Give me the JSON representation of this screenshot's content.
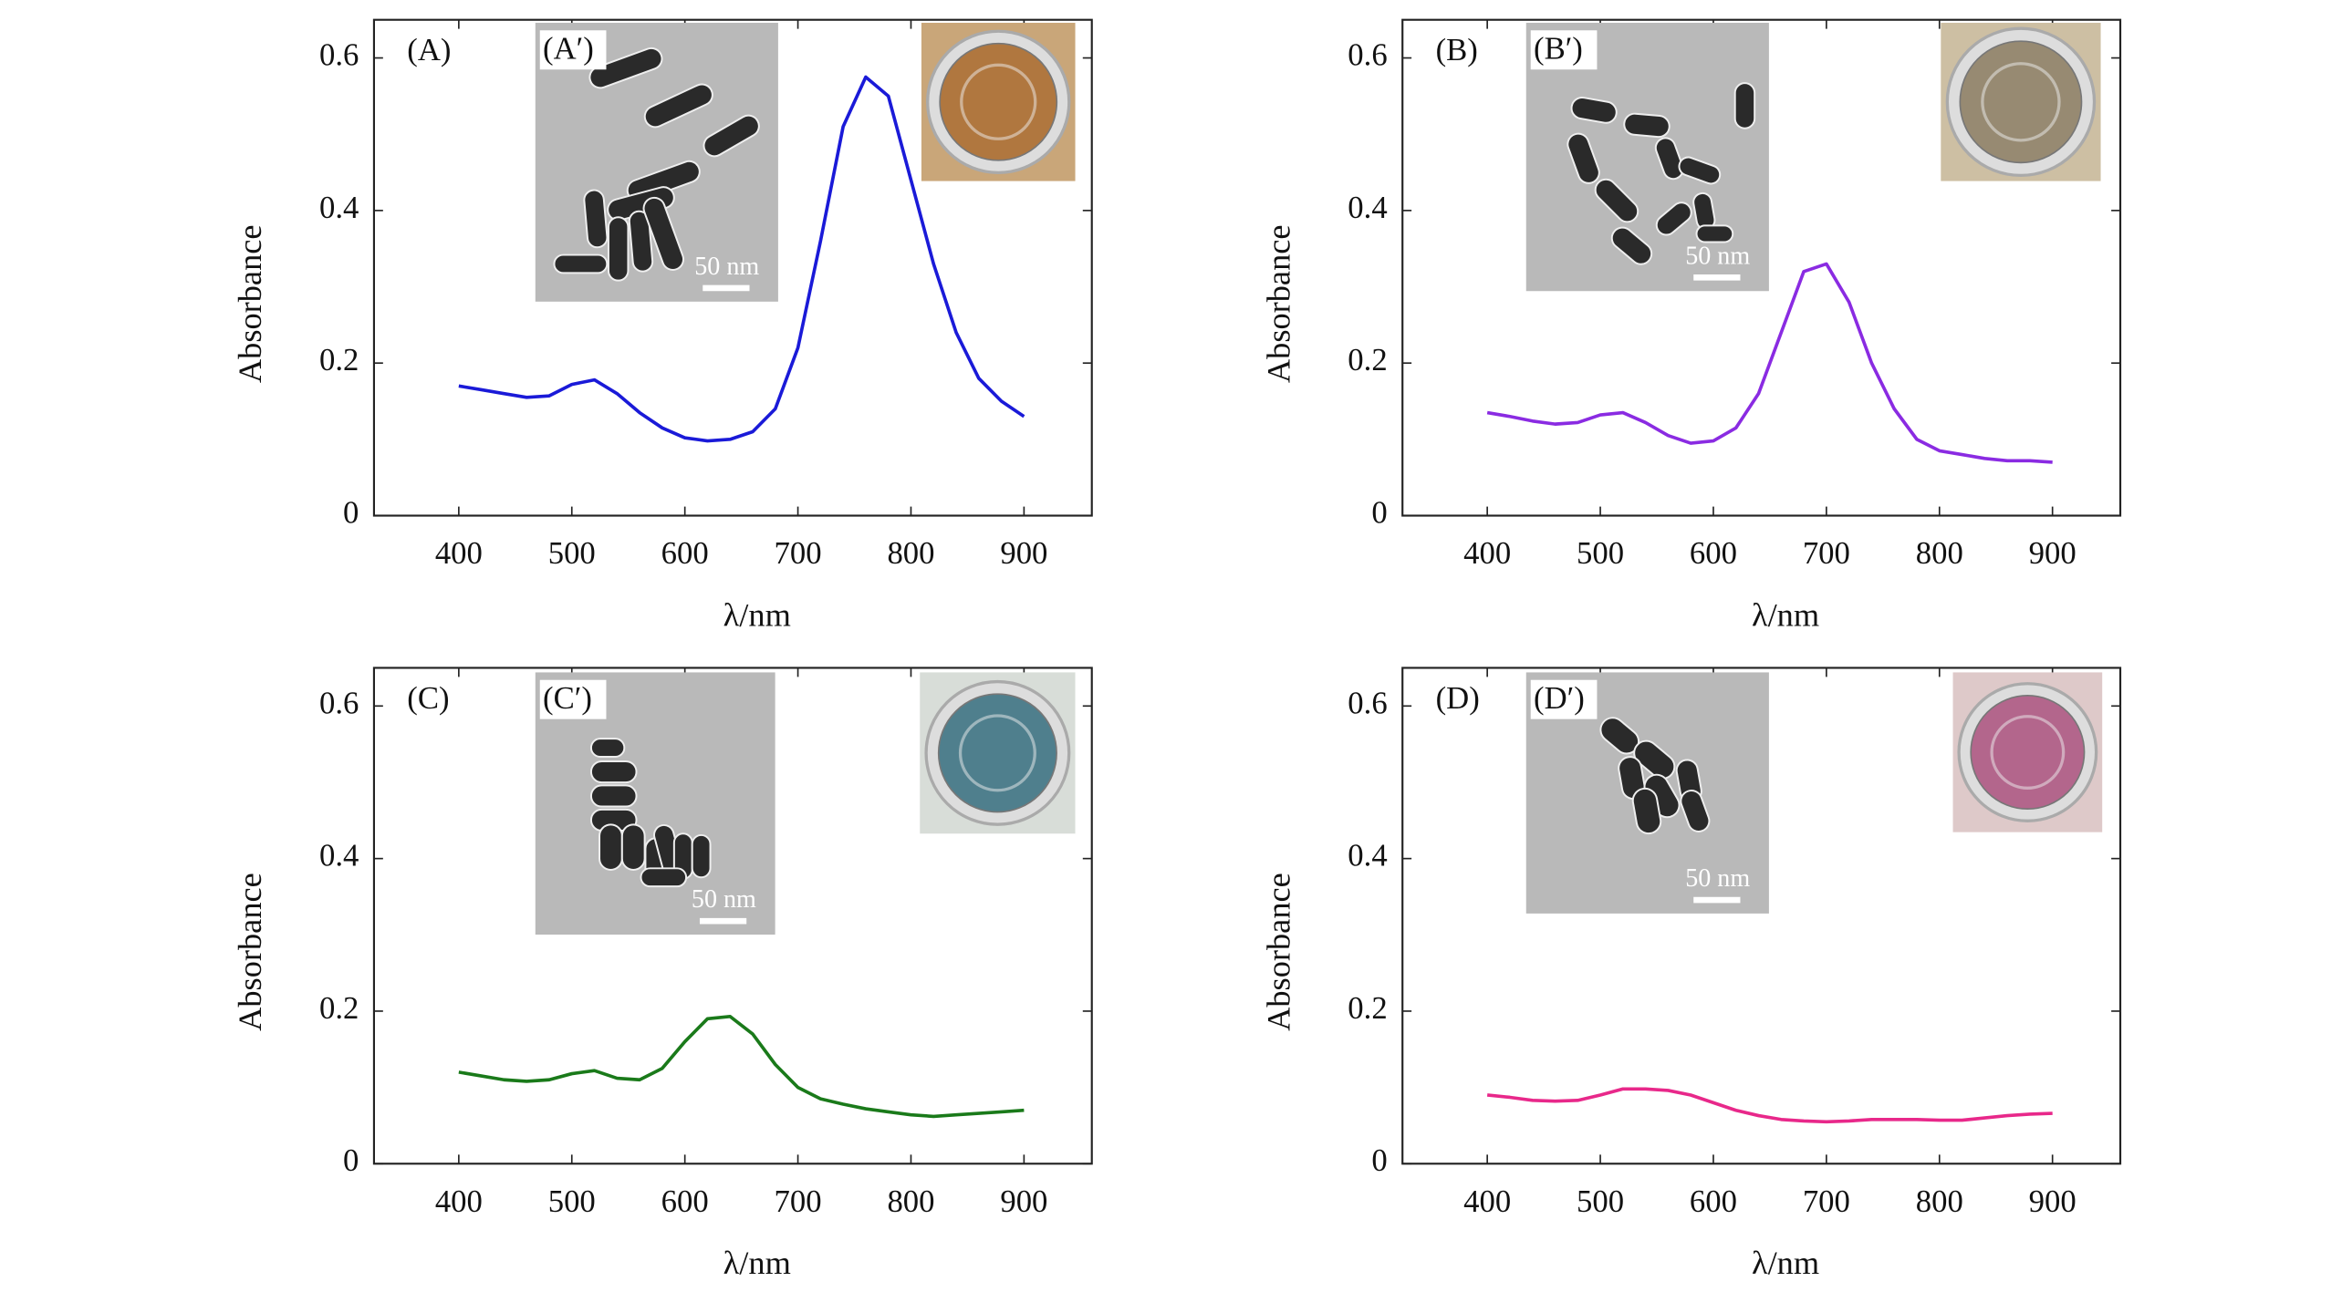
{
  "chart_data": [
    {
      "type": "line",
      "panel_label": "(A)",
      "inset_label": "(A′)",
      "scale_bar": "50 nm",
      "xlabel": "λ/nm",
      "ylabel": "Absorbance",
      "color": "#1a1ad8",
      "xlim": [
        325,
        960
      ],
      "ylim": [
        0,
        0.65
      ],
      "xticks": [
        400,
        500,
        600,
        700,
        800,
        900
      ],
      "yticks": [
        0,
        0.2,
        0.4,
        0.6
      ],
      "x": [
        400,
        420,
        440,
        460,
        480,
        500,
        520,
        540,
        560,
        580,
        600,
        620,
        640,
        660,
        680,
        700,
        720,
        740,
        760,
        780,
        800,
        820,
        840,
        860,
        880,
        900
      ],
      "values": [
        0.17,
        0.165,
        0.16,
        0.155,
        0.157,
        0.172,
        0.178,
        0.16,
        0.135,
        0.115,
        0.102,
        0.098,
        0.1,
        0.11,
        0.14,
        0.22,
        0.36,
        0.51,
        0.575,
        0.55,
        0.44,
        0.33,
        0.24,
        0.18,
        0.15,
        0.13
      ]
    },
    {
      "type": "line",
      "panel_label": "(B)",
      "inset_label": "(B′)",
      "scale_bar": "50 nm",
      "xlabel": "λ/nm",
      "ylabel": "Absorbance",
      "color": "#8a2be2",
      "xlim": [
        325,
        960
      ],
      "ylim": [
        0,
        0.65
      ],
      "xticks": [
        400,
        500,
        600,
        700,
        800,
        900
      ],
      "yticks": [
        0,
        0.2,
        0.4,
        0.6
      ],
      "x": [
        400,
        420,
        440,
        460,
        480,
        500,
        520,
        540,
        560,
        580,
        600,
        620,
        640,
        660,
        680,
        700,
        720,
        740,
        760,
        780,
        800,
        820,
        840,
        860,
        880,
        900
      ],
      "values": [
        0.135,
        0.13,
        0.124,
        0.12,
        0.122,
        0.132,
        0.135,
        0.122,
        0.105,
        0.095,
        0.098,
        0.115,
        0.16,
        0.24,
        0.32,
        0.33,
        0.28,
        0.2,
        0.14,
        0.1,
        0.085,
        0.08,
        0.075,
        0.072,
        0.072,
        0.07
      ]
    },
    {
      "type": "line",
      "panel_label": "(C)",
      "inset_label": "(C′)",
      "scale_bar": "50 nm",
      "xlabel": "λ/nm",
      "ylabel": "Absorbance",
      "color": "#1a7a1a",
      "xlim": [
        325,
        960
      ],
      "ylim": [
        0,
        0.65
      ],
      "xticks": [
        400,
        500,
        600,
        700,
        800,
        900
      ],
      "yticks": [
        0,
        0.2,
        0.4,
        0.6
      ],
      "x": [
        400,
        420,
        440,
        460,
        480,
        500,
        520,
        540,
        560,
        580,
        600,
        620,
        640,
        660,
        680,
        700,
        720,
        740,
        760,
        780,
        800,
        820,
        840,
        860,
        880,
        900
      ],
      "values": [
        0.12,
        0.115,
        0.11,
        0.108,
        0.11,
        0.118,
        0.122,
        0.112,
        0.11,
        0.125,
        0.16,
        0.19,
        0.193,
        0.17,
        0.13,
        0.1,
        0.085,
        0.078,
        0.072,
        0.068,
        0.064,
        0.062,
        0.064,
        0.066,
        0.068,
        0.07
      ]
    },
    {
      "type": "line",
      "panel_label": "(D)",
      "inset_label": "(D′)",
      "scale_bar": "50 nm",
      "xlabel": "λ/nm",
      "ylabel": "Absorbance",
      "color": "#e8288a",
      "xlim": [
        325,
        960
      ],
      "ylim": [
        0,
        0.65
      ],
      "xticks": [
        400,
        500,
        600,
        700,
        800,
        900
      ],
      "yticks": [
        0,
        0.2,
        0.4,
        0.6
      ],
      "x": [
        400,
        420,
        440,
        460,
        480,
        500,
        520,
        540,
        560,
        580,
        600,
        620,
        640,
        660,
        680,
        700,
        720,
        740,
        760,
        780,
        800,
        820,
        840,
        860,
        880,
        900
      ],
      "values": [
        0.09,
        0.087,
        0.083,
        0.082,
        0.083,
        0.09,
        0.098,
        0.098,
        0.096,
        0.09,
        0.08,
        0.07,
        0.063,
        0.058,
        0.056,
        0.055,
        0.056,
        0.058,
        0.058,
        0.058,
        0.057,
        0.057,
        0.06,
        0.063,
        0.065,
        0.066
      ]
    }
  ]
}
